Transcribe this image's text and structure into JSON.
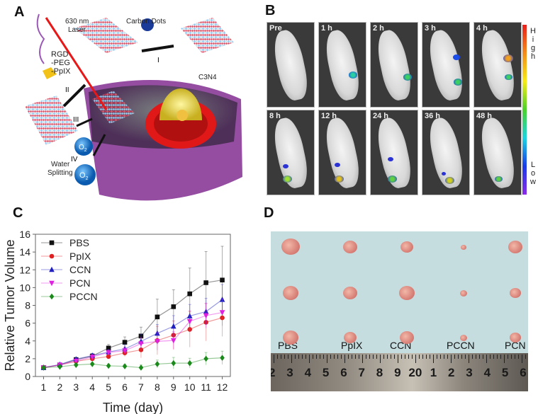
{
  "panels": {
    "a": {
      "label": "A",
      "texts": {
        "laser": "630 nm\nLaser",
        "carbon_dots": "Carbon Dots",
        "c3n4": "C3N4",
        "rgd": "RGD\n-PEG\n-PpIX",
        "step1": "I",
        "step2": "II",
        "step3": "III",
        "step4": "IV",
        "o2": "O2",
        "water": "Water\nSplitting"
      }
    },
    "b": {
      "label": "B",
      "timepoints": [
        "Pre",
        "1 h",
        "2 h",
        "3 h",
        "4 h",
        "8 h",
        "12 h",
        "24 h",
        "36 h",
        "48 h"
      ],
      "colorbar_high": [
        "H",
        "i",
        "g",
        "h"
      ],
      "colorbar_low": [
        "L",
        "o",
        "w"
      ]
    },
    "c": {
      "label": "C"
    },
    "d": {
      "label": "D",
      "groups": [
        "PBS",
        "PpIX",
        "CCN",
        "PCCN",
        "PCN"
      ],
      "ruler_numbers": [
        "2",
        "3",
        "4",
        "5",
        "6",
        "7",
        "8",
        "9",
        "20",
        "1",
        "2",
        "3",
        "4",
        "5",
        "6"
      ]
    }
  },
  "chart_data": {
    "type": "line",
    "title": "",
    "xlabel": "Time (day)",
    "ylabel": "Relative Tumor Volume",
    "x": [
      1,
      2,
      3,
      4,
      5,
      6,
      7,
      8,
      9,
      10,
      11,
      12
    ],
    "xlim": [
      0.5,
      12.5
    ],
    "ylim": [
      0,
      16
    ],
    "yticks": [
      0,
      2,
      4,
      6,
      8,
      10,
      12,
      14,
      16
    ],
    "grid": false,
    "legend": "top-left",
    "series": [
      {
        "name": "PBS",
        "color": "#111111",
        "marker": "square",
        "values": [
          1,
          1.3,
          1.9,
          2.3,
          3.2,
          3.85,
          4.55,
          6.7,
          7.85,
          9.3,
          10.55,
          10.85
        ],
        "errors": [
          0.1,
          0.15,
          0.2,
          0.25,
          0.4,
          0.6,
          1.0,
          2.0,
          1.9,
          2.9,
          3.5,
          3.8
        ]
      },
      {
        "name": "PpIX",
        "color": "#e02020",
        "marker": "circle",
        "values": [
          1,
          1.3,
          1.7,
          2.0,
          2.25,
          2.65,
          3.0,
          4.05,
          4.65,
          5.3,
          6.1,
          6.6
        ],
        "errors": [
          0.1,
          0.15,
          0.2,
          0.2,
          0.3,
          0.4,
          0.9,
          1.6,
          1.6,
          2.0,
          2.1,
          2.1
        ]
      },
      {
        "name": "CCN",
        "color": "#2020c0",
        "marker": "triangle-up",
        "values": [
          1,
          1.35,
          1.95,
          2.35,
          2.75,
          3.1,
          3.95,
          4.85,
          5.65,
          6.8,
          7.3,
          8.65
        ],
        "errors": [
          0.1,
          0.15,
          0.2,
          0.25,
          0.3,
          0.5,
          0.8,
          1.0,
          1.2,
          1.3,
          1.5,
          1.7
        ]
      },
      {
        "name": "PCN",
        "color": "#e020e0",
        "marker": "triangle-down",
        "values": [
          1,
          1.3,
          1.75,
          2.2,
          2.7,
          2.9,
          3.7,
          3.95,
          4.05,
          6.2,
          6.85,
          7.2
        ],
        "errors": [
          0.1,
          0.15,
          0.2,
          0.25,
          0.3,
          0.4,
          0.7,
          1.0,
          1.0,
          1.2,
          1.4,
          1.5
        ]
      },
      {
        "name": "PCCN",
        "color": "#1a8a1a",
        "marker": "diamond",
        "values": [
          1,
          1.1,
          1.3,
          1.4,
          1.2,
          1.15,
          1.0,
          1.4,
          1.5,
          1.5,
          2.0,
          2.1
        ],
        "errors": [
          0.1,
          0.1,
          0.15,
          0.15,
          0.2,
          0.2,
          0.3,
          0.45,
          0.65,
          0.55,
          0.7,
          0.75
        ]
      }
    ]
  }
}
